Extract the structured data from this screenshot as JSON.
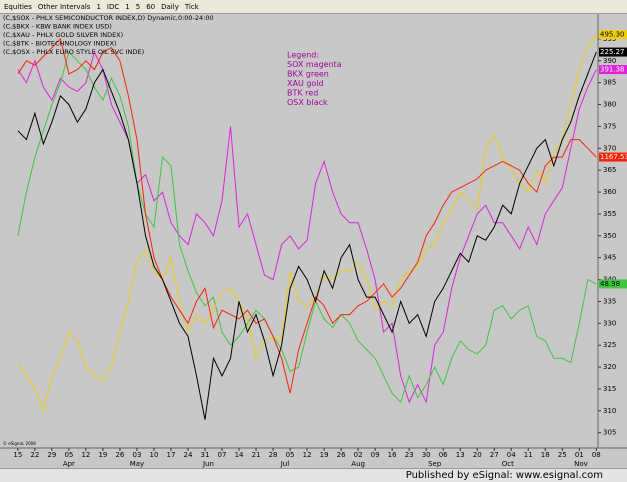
{
  "toolbar": {
    "items": [
      "Equities",
      "Other Intervals",
      "1",
      "IDC",
      "1",
      "5",
      "60",
      "Daily",
      "Tick"
    ]
  },
  "footer": "Published by eSignal: www.esignal.com",
  "chart_data": {
    "type": "line",
    "header": [
      "(C,$SOX - PHLX SEMICONDUCTOR INDEX,D) Dynamic,0:00-24:00",
      "(C,$BKX - KBW BANK INDEX USD)",
      "(C,$XAU - PHLX GOLD SILVER INDEX)",
      "(C,$BTK - BIOTECHNOLOGY INDEX)",
      "(C,$OSX - PHLX EURO STYLE OIL SVC INDE)"
    ],
    "legend": [
      "Legend:",
      "SOX magenta",
      "BKX green",
      "XAU gold",
      "BTK red",
      "OSX black"
    ],
    "copyright": "© eSignal, 2008",
    "x": [
      0,
      0.5,
      1,
      1.5,
      2,
      2.5,
      3,
      3.5,
      4,
      4.5,
      5,
      5.5,
      6,
      6.5,
      7,
      7.5,
      8,
      8.5,
      9,
      9.5,
      10,
      10.5,
      11,
      11.5,
      12,
      12.5,
      13,
      13.5,
      14,
      14.5,
      15,
      15.5,
      16,
      16.5,
      17,
      17.5,
      18,
      18.5,
      19,
      19.5,
      20,
      20.5,
      21,
      21.5,
      22,
      22.5,
      23,
      23.5,
      24,
      24.5,
      25,
      25.5,
      26,
      26.5,
      27,
      27.5,
      28,
      28.5,
      29,
      29.5,
      30,
      30.5,
      31,
      31.5,
      32,
      32.5,
      33,
      33.5,
      34
    ],
    "xlim": [
      -1.05,
      34.1
    ],
    "xticks": [
      {
        "value": 0,
        "label": "15"
      },
      {
        "value": 1,
        "label": "22"
      },
      {
        "value": 2,
        "label": "29"
      },
      {
        "value": 3,
        "label": "05"
      },
      {
        "value": 4,
        "label": "12"
      },
      {
        "value": 5,
        "label": "19"
      },
      {
        "value": 6,
        "label": "26"
      },
      {
        "value": 7,
        "label": "03"
      },
      {
        "value": 8,
        "label": "10"
      },
      {
        "value": 9,
        "label": "17"
      },
      {
        "value": 10,
        "label": "24"
      },
      {
        "value": 11,
        "label": "31"
      },
      {
        "value": 12,
        "label": "07"
      },
      {
        "value": 13,
        "label": "14"
      },
      {
        "value": 14,
        "label": "21"
      },
      {
        "value": 15,
        "label": "28"
      },
      {
        "value": 16,
        "label": "05"
      },
      {
        "value": 17,
        "label": "12"
      },
      {
        "value": 18,
        "label": "19"
      },
      {
        "value": 19,
        "label": "26"
      },
      {
        "value": 20,
        "label": "02"
      },
      {
        "value": 21,
        "label": "09"
      },
      {
        "value": 22,
        "label": "16"
      },
      {
        "value": 23,
        "label": "23"
      },
      {
        "value": 24,
        "label": "30"
      },
      {
        "value": 25,
        "label": "06"
      },
      {
        "value": 26,
        "label": "13"
      },
      {
        "value": 27,
        "label": "20"
      },
      {
        "value": 28,
        "label": "27"
      },
      {
        "value": 29,
        "label": "04"
      },
      {
        "value": 30,
        "label": "11"
      },
      {
        "value": 31,
        "label": "18"
      },
      {
        "value": 32,
        "label": "25"
      },
      {
        "value": 33,
        "label": "01"
      },
      {
        "value": 34,
        "label": "08"
      }
    ],
    "months": [
      {
        "value": 3,
        "label": "Apr"
      },
      {
        "value": 7,
        "label": "May"
      },
      {
        "value": 11.2,
        "label": "Jun"
      },
      {
        "value": 15.7,
        "label": "Jul"
      },
      {
        "value": 20,
        "label": "Aug"
      },
      {
        "value": 24.5,
        "label": "Sep"
      },
      {
        "value": 28.8,
        "label": "Oct"
      },
      {
        "value": 33.1,
        "label": "Nov"
      }
    ],
    "ylim": [
      301.5,
      400.7
    ],
    "yticks": [
      305,
      310,
      315,
      320,
      325,
      330,
      335,
      340,
      345,
      350,
      355,
      360,
      365,
      370,
      375,
      380,
      385,
      390,
      395
    ],
    "series": [
      {
        "name": "SOX",
        "color": "#e020e0",
        "last_label": "391.38",
        "values": [
          388,
          385,
          390,
          384,
          381,
          386,
          384,
          383,
          385,
          392,
          388,
          380,
          376,
          372,
          362,
          364,
          358,
          360,
          353,
          350,
          348,
          355,
          353,
          350,
          358,
          375,
          352,
          355,
          348,
          341,
          340,
          348,
          350,
          347,
          349,
          362,
          367,
          360,
          355,
          353,
          353,
          347,
          340,
          328,
          330,
          318,
          312,
          316,
          312,
          325,
          328,
          338,
          345,
          350,
          355,
          357,
          353,
          353,
          350,
          347,
          352,
          348,
          355,
          358,
          361,
          370,
          379,
          384,
          388
        ]
      },
      {
        "name": "BKX",
        "color": "#3cc83c",
        "last_label": "48.98",
        "values": [
          350,
          360,
          368,
          374,
          380,
          385,
          392,
          390,
          388,
          384,
          381,
          386,
          382,
          375,
          362,
          355,
          352,
          368,
          366,
          348,
          342,
          337,
          334,
          336,
          328,
          325,
          327,
          330,
          333,
          331,
          327,
          324,
          319,
          320,
          328,
          335,
          331,
          329,
          332,
          330,
          326,
          324,
          322,
          318,
          314,
          312,
          318,
          313,
          316,
          320,
          316,
          322,
          326,
          324,
          323,
          325,
          333,
          334,
          331,
          333,
          334,
          327,
          326,
          322,
          322,
          321,
          330,
          340,
          339
        ]
      },
      {
        "name": "XAU",
        "color": "#f0d000",
        "last_label": "495.30",
        "values": [
          321,
          318,
          315,
          310,
          318,
          322,
          328,
          326,
          320,
          318,
          317,
          320,
          328,
          335,
          344,
          347,
          342,
          340,
          345,
          335,
          328,
          332,
          330,
          333,
          337,
          338,
          335,
          331,
          322,
          326,
          327,
          326,
          342,
          335,
          334,
          336,
          341,
          340,
          342,
          342,
          344,
          340,
          333,
          335,
          334,
          340,
          342,
          343,
          347,
          348,
          353,
          356,
          360,
          358,
          356,
          370,
          373,
          368,
          365,
          362,
          360,
          365,
          362,
          369,
          372,
          380,
          388,
          393,
          396
        ]
      },
      {
        "name": "BTK",
        "color": "#ff2000",
        "last_label": "1167.53",
        "values": [
          387,
          390,
          389,
          391,
          393,
          395,
          387,
          388,
          390,
          388,
          392,
          393,
          390,
          382,
          372,
          355,
          345,
          340,
          336,
          333,
          330,
          335,
          338,
          329,
          333,
          332,
          331,
          333,
          330,
          331,
          327,
          322,
          314,
          324,
          330,
          336,
          334,
          330,
          332,
          332,
          334,
          335,
          337,
          339,
          336,
          338,
          341,
          344,
          350,
          353,
          357,
          360,
          361,
          362,
          363,
          365,
          366,
          367,
          366,
          365,
          362,
          360,
          366,
          368,
          368,
          372,
          372,
          370,
          368
        ]
      },
      {
        "name": "OSX",
        "color": "#000000",
        "last_label": "225.27",
        "values": [
          374,
          372,
          378,
          371,
          376,
          382,
          380,
          376,
          379,
          385,
          388,
          383,
          378,
          372,
          362,
          350,
          343,
          340,
          335,
          330,
          327,
          318,
          308,
          322,
          318,
          322,
          335,
          328,
          332,
          326,
          318,
          325,
          338,
          343,
          340,
          335,
          342,
          338,
          345,
          348,
          340,
          336,
          336,
          332,
          328,
          335,
          330,
          332,
          327,
          335,
          338,
          342,
          346,
          344,
          350,
          349,
          352,
          357,
          355,
          362,
          366,
          370,
          372,
          366,
          372,
          376,
          382,
          387,
          392
        ]
      }
    ]
  }
}
